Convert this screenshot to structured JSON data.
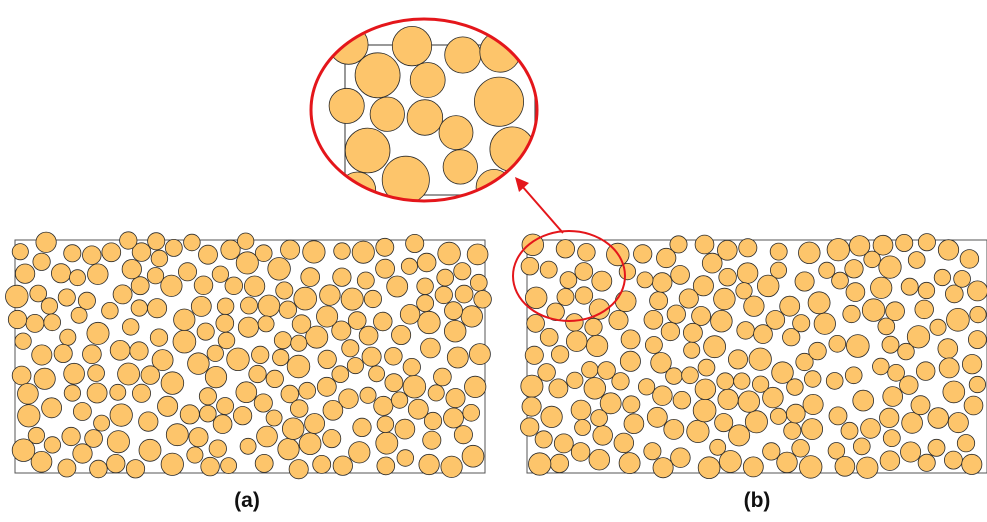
{
  "figure": {
    "panels": [
      {
        "id": "a",
        "label": "(a)"
      },
      {
        "id": "b",
        "label": "(b)"
      }
    ],
    "inset": {
      "description_visible": false
    },
    "colors": {
      "particle_fill": "#FDC56B",
      "particle_stroke": "#2b2b2b",
      "box_stroke": "#555555",
      "highlight": "#E4161B"
    }
  }
}
